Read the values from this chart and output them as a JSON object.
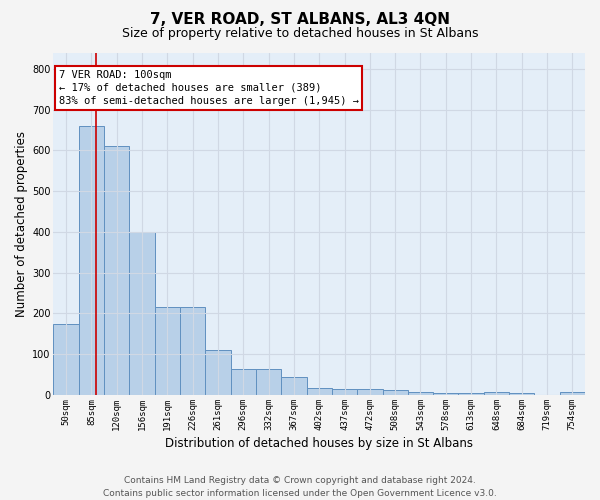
{
  "title": "7, VER ROAD, ST ALBANS, AL3 4QN",
  "subtitle": "Size of property relative to detached houses in St Albans",
  "xlabel": "Distribution of detached houses by size in St Albans",
  "ylabel": "Number of detached properties",
  "footer_line1": "Contains HM Land Registry data © Crown copyright and database right 2024.",
  "footer_line2": "Contains public sector information licensed under the Open Government Licence v3.0.",
  "bar_labels": [
    "50sqm",
    "85sqm",
    "120sqm",
    "156sqm",
    "191sqm",
    "226sqm",
    "261sqm",
    "296sqm",
    "332sqm",
    "367sqm",
    "402sqm",
    "437sqm",
    "472sqm",
    "508sqm",
    "543sqm",
    "578sqm",
    "613sqm",
    "648sqm",
    "684sqm",
    "719sqm",
    "754sqm"
  ],
  "bar_values": [
    175,
    660,
    610,
    400,
    215,
    215,
    110,
    65,
    65,
    45,
    18,
    16,
    15,
    13,
    8,
    5,
    5,
    8,
    5,
    1,
    7
  ],
  "bar_color": "#b8d0e8",
  "bar_edge_color": "#6090c0",
  "fig_background": "#f4f4f4",
  "plot_background": "#e4eef8",
  "grid_color": "#d0d8e4",
  "annotation_line1": "7 VER ROAD: 100sqm",
  "annotation_line2": "← 17% of detached houses are smaller (389)",
  "annotation_line3": "83% of semi-detached houses are larger (1,945) →",
  "annotation_box_edgecolor": "#cc0000",
  "vline_color": "#cc0000",
  "vline_x": 1.17,
  "ylim": [
    0,
    840
  ],
  "yticks": [
    0,
    100,
    200,
    300,
    400,
    500,
    600,
    700,
    800
  ],
  "title_fontsize": 11,
  "subtitle_fontsize": 9,
  "annotation_fontsize": 7.5,
  "xlabel_fontsize": 8.5,
  "ylabel_fontsize": 8.5,
  "footer_fontsize": 6.5,
  "tick_fontsize": 6.5
}
